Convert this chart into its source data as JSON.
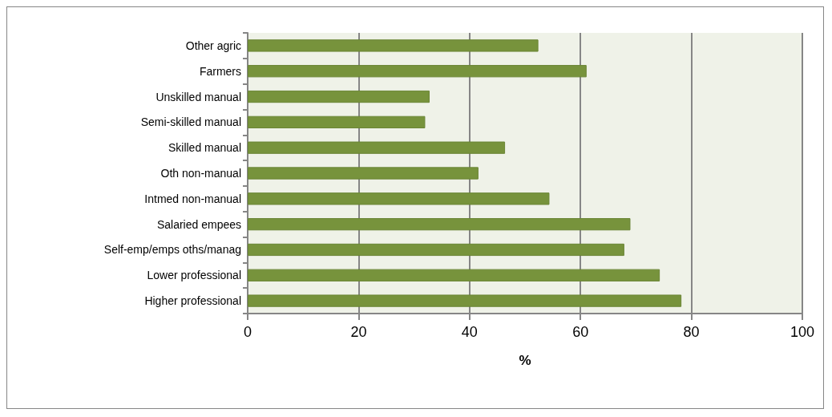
{
  "chart_data": {
    "type": "bar",
    "orientation": "horizontal",
    "xlabel": "%",
    "categories": [
      "Other agric",
      "Farmers",
      "Unskilled manual",
      "Semi-skilled manual",
      "Skilled manual",
      "Oth non-manual",
      "Intmed non-manual",
      "Salaried empees",
      "Self-emp/emps oths/manag",
      "Lower professional",
      "Higher professional"
    ],
    "values": [
      52.4,
      61.1,
      32.8,
      32.0,
      46.4,
      41.6,
      54.4,
      69.0,
      67.9,
      74.3,
      78.2
    ],
    "color": "#77933c",
    "xlim": [
      0,
      100
    ],
    "xticks": [
      0,
      20,
      40,
      60,
      80,
      100
    ],
    "grid": "x"
  }
}
